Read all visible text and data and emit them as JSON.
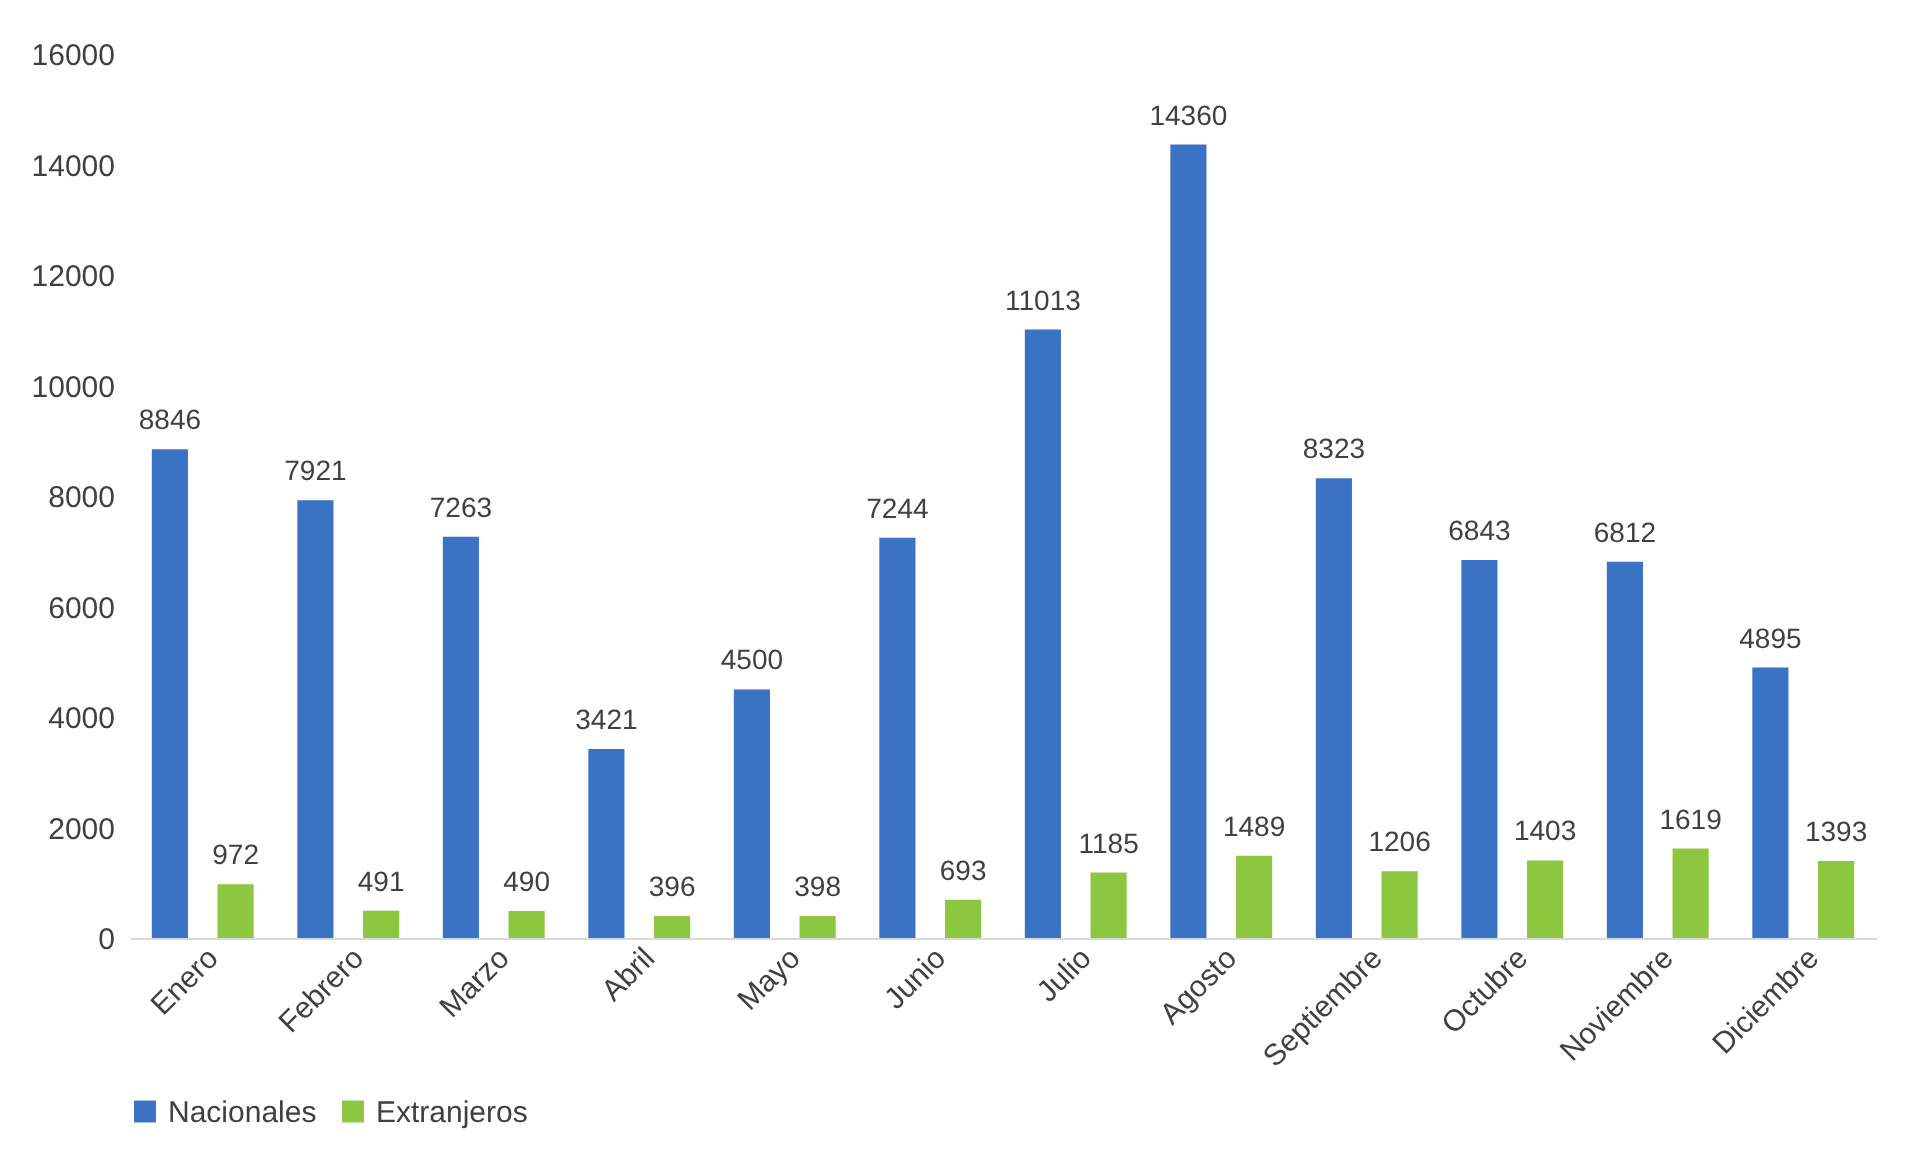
{
  "chart_data": {
    "type": "bar",
    "categories": [
      "Enero",
      "Febrero",
      "Marzo",
      "Abril",
      "Mayo",
      "Junio",
      "Julio",
      "Agosto",
      "Septiembre",
      "Octubre",
      "Noviembre",
      "Diciembre"
    ],
    "series": [
      {
        "name": "Nacionales",
        "color": "#3a72c4",
        "values": [
          8846,
          7921,
          7263,
          3421,
          4500,
          7244,
          11013,
          14360,
          8323,
          6843,
          6812,
          4895
        ]
      },
      {
        "name": "Extranjeros",
        "color": "#8dc63f",
        "values": [
          972,
          491,
          490,
          396,
          398,
          693,
          1185,
          1489,
          1206,
          1403,
          1619,
          1393
        ]
      }
    ],
    "ylim": [
      0,
      16000
    ],
    "yticks": [
      0,
      2000,
      4000,
      6000,
      8000,
      10000,
      12000,
      14000,
      16000
    ],
    "grid": false,
    "legend": "bottom",
    "data_labels": true
  }
}
